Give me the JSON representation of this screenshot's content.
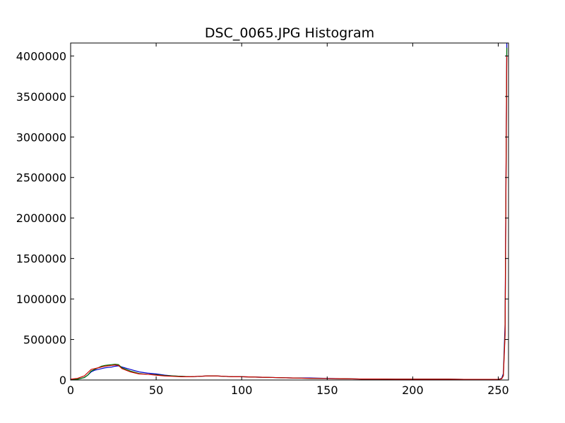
{
  "chart_data": {
    "type": "line",
    "title": "DSC_0065.JPG Histogram",
    "xlabel": "",
    "ylabel": "",
    "xlim": [
      0,
      256
    ],
    "ylim": [
      0,
      4160000
    ],
    "x_ticks": [
      0,
      50,
      100,
      150,
      200,
      250
    ],
    "y_ticks": [
      0,
      500000,
      1000000,
      1500000,
      2000000,
      2500000,
      3000000,
      3500000,
      4000000
    ],
    "grid": false,
    "legend": "none",
    "x": [
      0,
      4,
      8,
      10,
      12,
      14,
      16,
      18,
      20,
      22,
      24,
      26,
      28,
      30,
      35,
      40,
      45,
      50,
      55,
      60,
      65,
      70,
      75,
      80,
      85,
      90,
      95,
      100,
      110,
      120,
      130,
      140,
      150,
      160,
      170,
      180,
      190,
      200,
      210,
      220,
      230,
      240,
      250,
      252,
      253,
      254,
      255
    ],
    "series": [
      {
        "color": "#0000cc",
        "values": [
          5000,
          10000,
          30000,
          60000,
          100000,
          120000,
          130000,
          140000,
          150000,
          155000,
          160000,
          170000,
          175000,
          160000,
          130000,
          100000,
          85000,
          75000,
          60000,
          50000,
          45000,
          40000,
          45000,
          50000,
          50000,
          45000,
          40000,
          40000,
          35000,
          30000,
          25000,
          25000,
          20000,
          15000,
          12000,
          12000,
          10000,
          10000,
          10000,
          10000,
          8000,
          8000,
          8000,
          20000,
          80000,
          700000,
          4160000
        ]
      },
      {
        "color": "#007700",
        "values": [
          5000,
          10000,
          30000,
          60000,
          110000,
          130000,
          150000,
          170000,
          180000,
          185000,
          190000,
          195000,
          190000,
          150000,
          110000,
          80000,
          70000,
          65000,
          55000,
          50000,
          45000,
          40000,
          45000,
          50000,
          50000,
          45000,
          40000,
          40000,
          35000,
          30000,
          25000,
          20000,
          18000,
          15000,
          12000,
          12000,
          10000,
          10000,
          10000,
          10000,
          8000,
          8000,
          8000,
          15000,
          60000,
          600000,
          4100000
        ]
      },
      {
        "color": "#cc0000",
        "values": [
          10000,
          20000,
          50000,
          90000,
          130000,
          140000,
          150000,
          160000,
          170000,
          175000,
          180000,
          185000,
          180000,
          140000,
          100000,
          75000,
          70000,
          60000,
          50000,
          45000,
          40000,
          40000,
          45000,
          50000,
          50000,
          45000,
          40000,
          40000,
          35000,
          30000,
          25000,
          20000,
          18000,
          15000,
          12000,
          12000,
          10000,
          10000,
          10000,
          10000,
          8000,
          8000,
          8000,
          15000,
          50000,
          550000,
          4000000
        ]
      }
    ]
  }
}
